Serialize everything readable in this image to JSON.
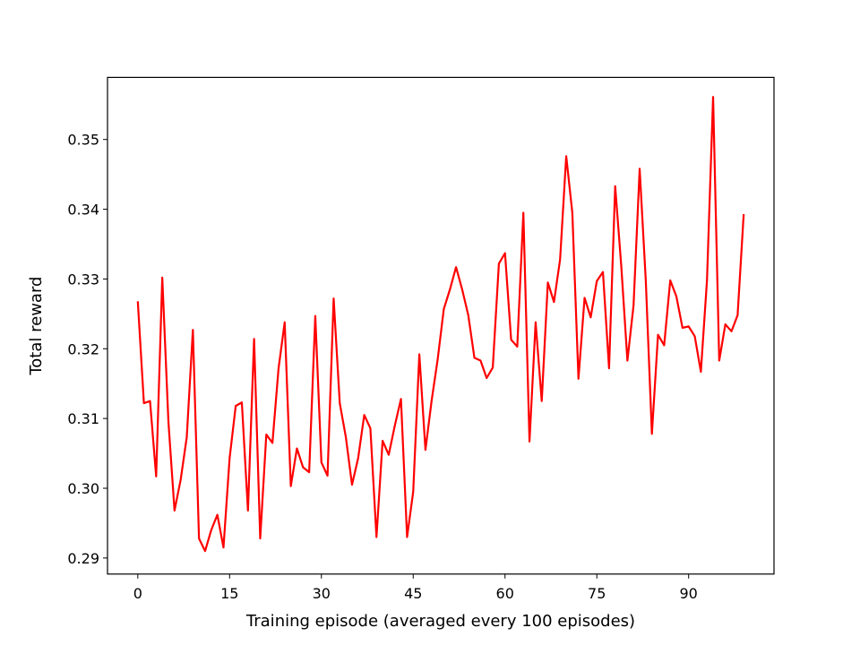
{
  "chart_data": {
    "type": "line",
    "title": "",
    "xlabel": "Training episode (averaged every 100 episodes)",
    "ylabel": "Total reward",
    "xlim": [
      -4.95,
      103.95
    ],
    "ylim": [
      0.2877,
      0.3589
    ],
    "xticks": [
      0,
      15,
      30,
      45,
      60,
      75,
      90
    ],
    "yticks": [
      0.29,
      0.3,
      0.31,
      0.32,
      0.33,
      0.34,
      0.35
    ],
    "ytick_labels": [
      "0.29",
      "0.30",
      "0.31",
      "0.32",
      "0.33",
      "0.34",
      "0.35"
    ],
    "grid": false,
    "legend": "none",
    "series": [
      {
        "color": "#ff0000",
        "x": [
          0,
          1,
          2,
          3,
          4,
          5,
          6,
          7,
          8,
          9,
          10,
          11,
          12,
          13,
          14,
          15,
          16,
          17,
          18,
          19,
          20,
          21,
          22,
          23,
          24,
          25,
          26,
          27,
          28,
          29,
          30,
          31,
          32,
          33,
          34,
          35,
          36,
          37,
          38,
          39,
          40,
          41,
          42,
          43,
          44,
          45,
          46,
          47,
          48,
          49,
          50,
          51,
          52,
          53,
          54,
          55,
          56,
          57,
          58,
          59,
          60,
          61,
          62,
          63,
          64,
          65,
          66,
          67,
          68,
          69,
          70,
          71,
          72,
          73,
          74,
          75,
          76,
          77,
          78,
          79,
          80,
          81,
          82,
          83,
          84,
          85,
          86,
          87,
          88,
          89,
          90,
          91,
          92,
          93,
          94,
          95,
          96,
          97,
          98,
          99
        ],
        "y": [
          0.3268,
          0.3122,
          0.3125,
          0.3017,
          0.3302,
          0.3096,
          0.2968,
          0.3012,
          0.3073,
          0.3227,
          0.2928,
          0.291,
          0.294,
          0.2962,
          0.2915,
          0.3043,
          0.3118,
          0.3123,
          0.2968,
          0.3214,
          0.2928,
          0.3077,
          0.3065,
          0.3172,
          0.3238,
          0.3003,
          0.3057,
          0.303,
          0.3023,
          0.3247,
          0.3037,
          0.3018,
          0.3272,
          0.3122,
          0.3073,
          0.3005,
          0.3043,
          0.3105,
          0.3086,
          0.293,
          0.3068,
          0.3048,
          0.309,
          0.3128,
          0.293,
          0.2995,
          0.3192,
          0.3055,
          0.3125,
          0.3185,
          0.3257,
          0.3285,
          0.3317,
          0.3285,
          0.3248,
          0.3187,
          0.3183,
          0.3158,
          0.3173,
          0.3322,
          0.3337,
          0.3213,
          0.3203,
          0.3395,
          0.3067,
          0.3238,
          0.3125,
          0.3295,
          0.3267,
          0.3328,
          0.3476,
          0.3395,
          0.3157,
          0.3273,
          0.3245,
          0.3297,
          0.331,
          0.3172,
          0.3433,
          0.3318,
          0.3183,
          0.3262,
          0.3458,
          0.3298,
          0.3078,
          0.322,
          0.3205,
          0.3298,
          0.3275,
          0.323,
          0.3232,
          0.3218,
          0.3167,
          0.3298,
          0.3561,
          0.3183,
          0.3235,
          0.3225,
          0.3248,
          0.3393
        ]
      }
    ]
  }
}
